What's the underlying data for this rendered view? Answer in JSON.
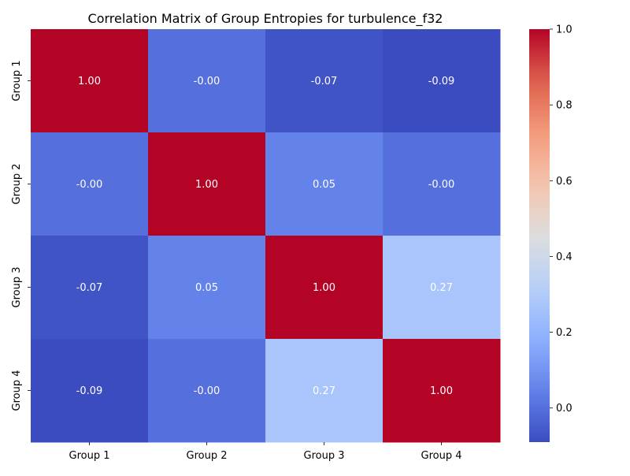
{
  "chart_data": {
    "type": "heatmap",
    "title": "Correlation Matrix of Group Entropies for turbulence_f32",
    "xlabel": "",
    "ylabel": "",
    "x_labels": [
      "Group 1",
      "Group 2",
      "Group 3",
      "Group 4"
    ],
    "y_labels": [
      "Group 1",
      "Group 2",
      "Group 3",
      "Group 4"
    ],
    "values": [
      [
        1.0,
        -0.0,
        -0.07,
        -0.09
      ],
      [
        -0.0,
        1.0,
        0.05,
        -0.0
      ],
      [
        -0.07,
        0.05,
        1.0,
        0.27
      ],
      [
        -0.09,
        -0.0,
        0.27,
        1.0
      ]
    ],
    "annotations": [
      [
        "1.00",
        "-0.00",
        "-0.07",
        "-0.09"
      ],
      [
        "-0.00",
        "1.00",
        "0.05",
        "-0.00"
      ],
      [
        "-0.07",
        "0.05",
        "1.00",
        "0.27"
      ],
      [
        "-0.09",
        "-0.00",
        "0.27",
        "1.00"
      ]
    ],
    "colormap": "coolwarm",
    "vmin": -0.09,
    "vmax": 1.0,
    "colorbar": {
      "ticks": [
        0.0,
        0.2,
        0.4,
        0.6,
        0.8,
        1.0
      ],
      "tick_labels": [
        "0.0",
        "0.2",
        "0.4",
        "0.6",
        "0.8",
        "1.0"
      ],
      "placement": "right"
    },
    "grid": false
  }
}
